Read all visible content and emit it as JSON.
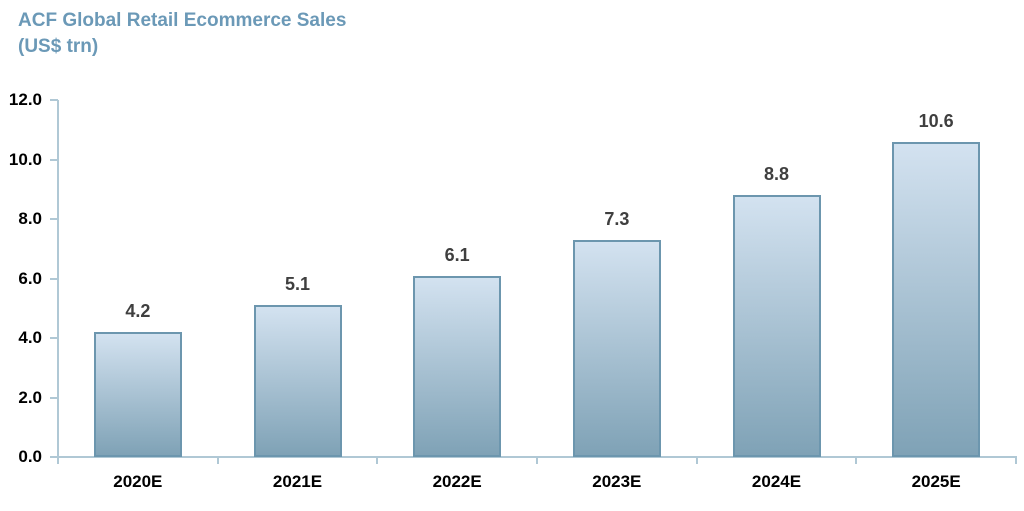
{
  "chart_data": {
    "type": "bar",
    "title": "ACF Global Retail Ecommerce Sales",
    "subtitle": "(US$ trn)",
    "categories": [
      "2020E",
      "2021E",
      "2022E",
      "2023E",
      "2024E",
      "2025E"
    ],
    "values": [
      4.2,
      5.1,
      6.1,
      7.3,
      8.8,
      10.6
    ],
    "value_labels": [
      "4.2",
      "5.1",
      "6.1",
      "7.3",
      "8.8",
      "10.6"
    ],
    "xlabel": "",
    "ylabel": "",
    "ylim": [
      0,
      12
    ],
    "ytick_step": 2,
    "ytick_labels": [
      "0.0",
      "2.0",
      "4.0",
      "6.0",
      "8.0",
      "10.0",
      "12.0"
    ],
    "grid": false,
    "legend": "none",
    "colors": {
      "title": "#6b99b7",
      "bar_fill_top": "#d3e2f0",
      "bar_fill_bottom": "#7fa2b6",
      "bar_border": "#6c96ae",
      "axis_line": "#b0c8d5",
      "value_label": "#3f3f3f",
      "tick_label": "#000000"
    }
  }
}
